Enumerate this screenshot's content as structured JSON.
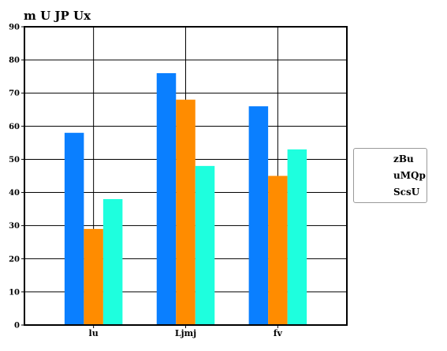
{
  "chart_data": {
    "type": "bar",
    "title": "m U JP Ux",
    "categories": [
      "lu",
      "Ljmj",
      "fv"
    ],
    "series": [
      {
        "name": "zBu",
        "values": [
          58,
          76,
          66
        ],
        "color": "#0a7fff"
      },
      {
        "name": "uMQp",
        "values": [
          29,
          68,
          45
        ],
        "color": "#ff8c00"
      },
      {
        "name": "ScsU",
        "values": [
          38,
          48,
          53
        ],
        "color": "#1effde"
      }
    ],
    "ylim": [
      0,
      90
    ],
    "yticks": [
      0,
      10,
      20,
      30,
      40,
      50,
      60,
      70,
      80,
      90
    ],
    "grid": true,
    "legend_position": "right"
  }
}
